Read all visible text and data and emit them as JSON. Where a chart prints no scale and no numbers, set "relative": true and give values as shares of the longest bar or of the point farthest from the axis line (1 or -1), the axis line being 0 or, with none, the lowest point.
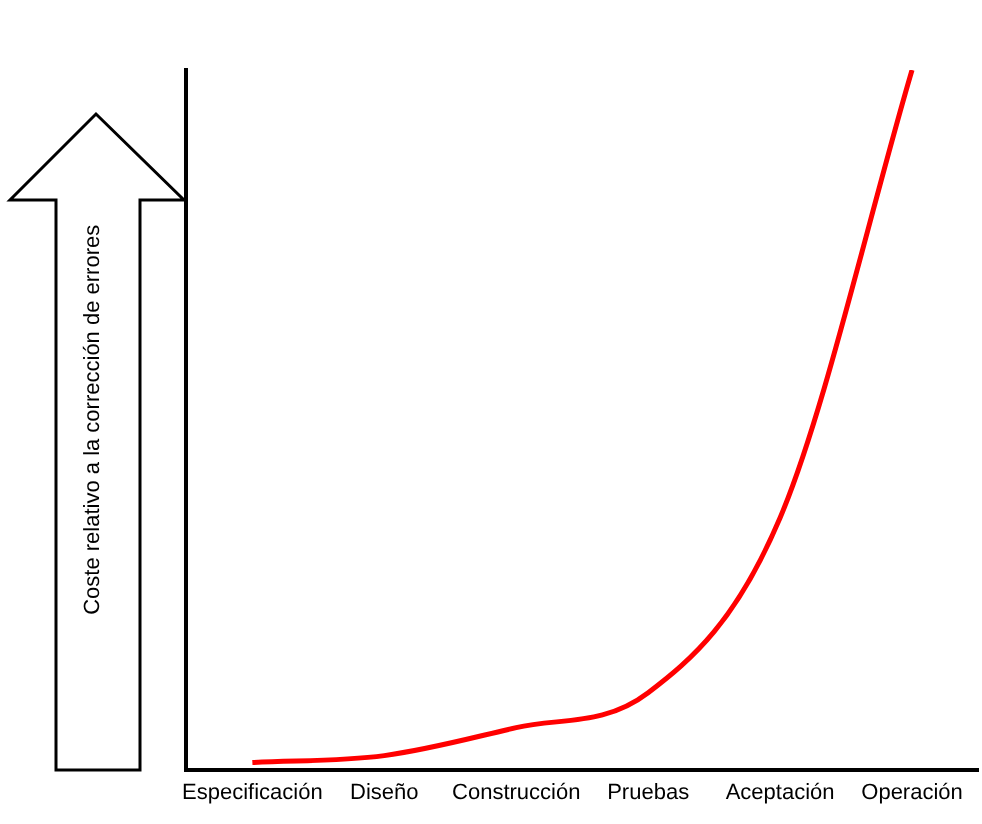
{
  "chart_data": {
    "type": "line",
    "relative": true,
    "ylabel": "Coste relativo a la corrección de errores",
    "categories": [
      "Especificación",
      "Diseño",
      "Construcción",
      "Pruebas",
      "Aceptación",
      "Operación"
    ],
    "series": [
      {
        "color": "#ff0000",
        "values": [
          0.01,
          0.02,
          0.06,
          0.11,
          0.36,
          1
        ]
      }
    ],
    "grid": false,
    "legend": false,
    "marker": "none",
    "line_style": "solid"
  }
}
